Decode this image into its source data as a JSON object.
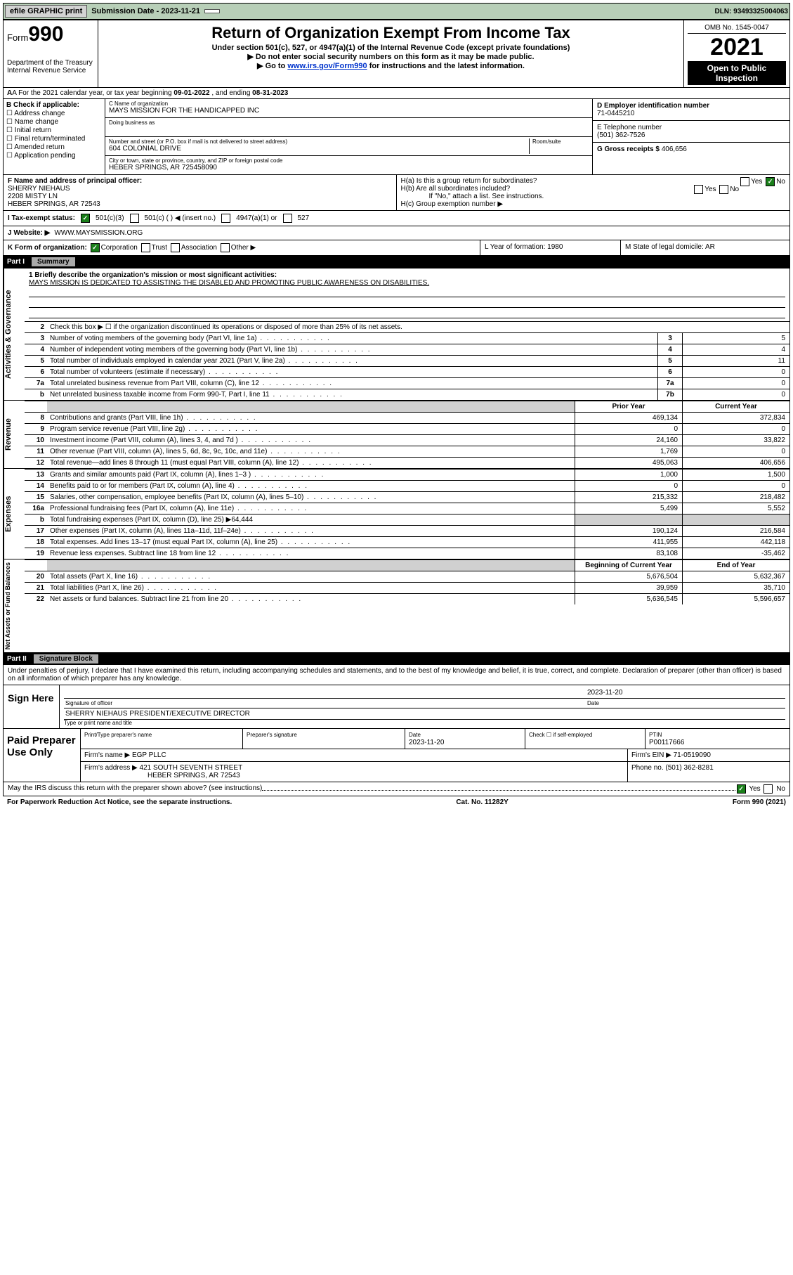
{
  "topbar": {
    "efile": "efile GRAPHIC print",
    "subdate_label": "Submission Date - 2023-11-21",
    "dln": "DLN: 93493325004063"
  },
  "header": {
    "form_word": "Form",
    "form_num": "990",
    "title": "Return of Organization Exempt From Income Tax",
    "sub1": "Under section 501(c), 527, or 4947(a)(1) of the Internal Revenue Code (except private foundations)",
    "sub2": "Do not enter social security numbers on this form as it may be made public.",
    "sub3_pre": "Go to ",
    "sub3_link": "www.irs.gov/Form990",
    "sub3_post": " for instructions and the latest information.",
    "dept": "Department of the Treasury\nInternal Revenue Service",
    "omb": "OMB No. 1545-0047",
    "year": "2021",
    "inspection": "Open to Public Inspection"
  },
  "row_a": {
    "text_pre": "A For the 2021 calendar year, or tax year beginning ",
    "begin": "09-01-2022",
    "mid": " , and ending ",
    "end": "08-31-2023"
  },
  "col_b": {
    "label": "B Check if applicable:",
    "items": [
      "Address change",
      "Name change",
      "Initial return",
      "Final return/terminated",
      "Amended return",
      "Application pending"
    ]
  },
  "col_c": {
    "name_label": "C Name of organization",
    "name": "MAYS MISSION FOR THE HANDICAPPED INC",
    "dba_label": "Doing business as",
    "dba": "",
    "addr_label": "Number and street (or P.O. box if mail is not delivered to street address)",
    "addr": "604 COLONIAL DRIVE",
    "room_label": "Room/suite",
    "city_label": "City or town, state or province, country, and ZIP or foreign postal code",
    "city": "HEBER SPRINGS, AR  725458090"
  },
  "col_d": {
    "ein_label": "D Employer identification number",
    "ein": "71-0445210",
    "phone_label": "E Telephone number",
    "phone": "(501) 362-7526",
    "gross_label": "G Gross receipts $",
    "gross": "406,656"
  },
  "row_f": {
    "label": "F Name and address of principal officer:",
    "name": "SHERRY NIEHAUS",
    "addr1": "2208 MISTY LN",
    "addr2": "HEBER SPRINGS, AR  72543"
  },
  "row_h": {
    "ha": "H(a)  Is this a group return for subordinates?",
    "hb": "H(b)  Are all subordinates included?",
    "hb_note": "If \"No,\" attach a list. See instructions.",
    "hc": "H(c)  Group exemption number ▶"
  },
  "row_i": {
    "label": "I   Tax-exempt status:",
    "o1": "501(c)(3)",
    "o2": "501(c) (   ) ◀ (insert no.)",
    "o3": "4947(a)(1) or",
    "o4": "527"
  },
  "row_j": {
    "label": "J   Website: ▶",
    "val": "WWW.MAYSMISSION.ORG"
  },
  "row_k": {
    "label": "K Form of organization:",
    "opts": [
      "Corporation",
      "Trust",
      "Association",
      "Other ▶"
    ],
    "l": "L Year of formation: 1980",
    "m": "M State of legal domicile: AR"
  },
  "part1": {
    "label": "Part I",
    "title": "Summary"
  },
  "sidelabels": {
    "gov": "Activities & Governance",
    "rev": "Revenue",
    "exp": "Expenses",
    "net": "Net Assets or Fund Balances"
  },
  "mission": {
    "q": "1  Briefly describe the organization's mission or most significant activities:",
    "a": "MAYS MISSION IS DEDICATED TO ASSISTING THE DISABLED AND PROMOTING PUBLIC AWARENESS ON DISABILITIES."
  },
  "gov_rows": [
    {
      "n": "2",
      "t": "Check this box ▶ ☐  if the organization discontinued its operations or disposed of more than 25% of its net assets."
    },
    {
      "n": "3",
      "t": "Number of voting members of the governing body (Part VI, line 1a)",
      "b": "3",
      "v": "5"
    },
    {
      "n": "4",
      "t": "Number of independent voting members of the governing body (Part VI, line 1b)",
      "b": "4",
      "v": "4"
    },
    {
      "n": "5",
      "t": "Total number of individuals employed in calendar year 2021 (Part V, line 2a)",
      "b": "5",
      "v": "11"
    },
    {
      "n": "6",
      "t": "Total number of volunteers (estimate if necessary)",
      "b": "6",
      "v": "0"
    },
    {
      "n": "7a",
      "t": "Total unrelated business revenue from Part VIII, column (C), line 12",
      "b": "7a",
      "v": "0"
    },
    {
      "n": "b",
      "t": "Net unrelated business taxable income from Form 990-T, Part I, line 11",
      "b": "7b",
      "v": "0"
    }
  ],
  "fin_hdr": {
    "prior": "Prior Year",
    "current": "Current Year",
    "beg": "Beginning of Current Year",
    "end": "End of Year"
  },
  "rev_rows": [
    {
      "n": "8",
      "t": "Contributions and grants (Part VIII, line 1h)",
      "p": "469,134",
      "c": "372,834"
    },
    {
      "n": "9",
      "t": "Program service revenue (Part VIII, line 2g)",
      "p": "0",
      "c": "0"
    },
    {
      "n": "10",
      "t": "Investment income (Part VIII, column (A), lines 3, 4, and 7d )",
      "p": "24,160",
      "c": "33,822"
    },
    {
      "n": "11",
      "t": "Other revenue (Part VIII, column (A), lines 5, 6d, 8c, 9c, 10c, and 11e)",
      "p": "1,769",
      "c": "0"
    },
    {
      "n": "12",
      "t": "Total revenue—add lines 8 through 11 (must equal Part VIII, column (A), line 12)",
      "p": "495,063",
      "c": "406,656"
    }
  ],
  "exp_rows": [
    {
      "n": "13",
      "t": "Grants and similar amounts paid (Part IX, column (A), lines 1–3 )",
      "p": "1,000",
      "c": "1,500"
    },
    {
      "n": "14",
      "t": "Benefits paid to or for members (Part IX, column (A), line 4)",
      "p": "0",
      "c": "0"
    },
    {
      "n": "15",
      "t": "Salaries, other compensation, employee benefits (Part IX, column (A), lines 5–10)",
      "p": "215,332",
      "c": "218,482"
    },
    {
      "n": "16a",
      "t": "Professional fundraising fees (Part IX, column (A), line 11e)",
      "p": "5,499",
      "c": "5,552"
    },
    {
      "n": "b",
      "t": "Total fundraising expenses (Part IX, column (D), line 25) ▶64,444",
      "shade": true
    },
    {
      "n": "17",
      "t": "Other expenses (Part IX, column (A), lines 11a–11d, 11f–24e)",
      "p": "190,124",
      "c": "216,584"
    },
    {
      "n": "18",
      "t": "Total expenses. Add lines 13–17 (must equal Part IX, column (A), line 25)",
      "p": "411,955",
      "c": "442,118"
    },
    {
      "n": "19",
      "t": "Revenue less expenses. Subtract line 18 from line 12",
      "p": "83,108",
      "c": "-35,462"
    }
  ],
  "net_rows": [
    {
      "n": "20",
      "t": "Total assets (Part X, line 16)",
      "p": "5,676,504",
      "c": "5,632,367"
    },
    {
      "n": "21",
      "t": "Total liabilities (Part X, line 26)",
      "p": "39,959",
      "c": "35,710"
    },
    {
      "n": "22",
      "t": "Net assets or fund balances. Subtract line 21 from line 20",
      "p": "5,636,545",
      "c": "5,596,657"
    }
  ],
  "part2": {
    "label": "Part II",
    "title": "Signature Block",
    "declar": "Under penalties of perjury, I declare that I have examined this return, including accompanying schedules and statements, and to the best of my knowledge and belief, it is true, correct, and complete. Declaration of preparer (other than officer) is based on all information of which preparer has any knowledge."
  },
  "sign": {
    "here": "Sign Here",
    "sig_lbl": "Signature of officer",
    "date_lbl": "Date",
    "date": "2023-11-20",
    "name": "SHERRY NIEHAUS  PRESIDENT/EXECUTIVE DIRECTOR",
    "name_lbl": "Type or print name and title"
  },
  "paid": {
    "label": "Paid Preparer Use Only",
    "h1": "Print/Type preparer's name",
    "h2": "Preparer's signature",
    "h3": "Date",
    "h3v": "2023-11-20",
    "h4": "Check ☐ if self-employed",
    "h5": "PTIN",
    "h5v": "P00117666",
    "firm_lbl": "Firm's name   ▶",
    "firm": "EGP PLLC",
    "ein_lbl": "Firm's EIN ▶",
    "ein": "71-0519090",
    "addr_lbl": "Firm's address ▶",
    "addr": "421 SOUTH SEVENTH STREET",
    "addr2": "HEBER SPRINGS, AR  72543",
    "phone_lbl": "Phone no.",
    "phone": "(501) 362-8281"
  },
  "footer": {
    "q": "May the IRS discuss this return with the preparer shown above? (see instructions)",
    "yes": "Yes",
    "no": "No",
    "pra": "For Paperwork Reduction Act Notice, see the separate instructions.",
    "cat": "Cat. No. 11282Y",
    "form": "Form 990 (2021)"
  }
}
